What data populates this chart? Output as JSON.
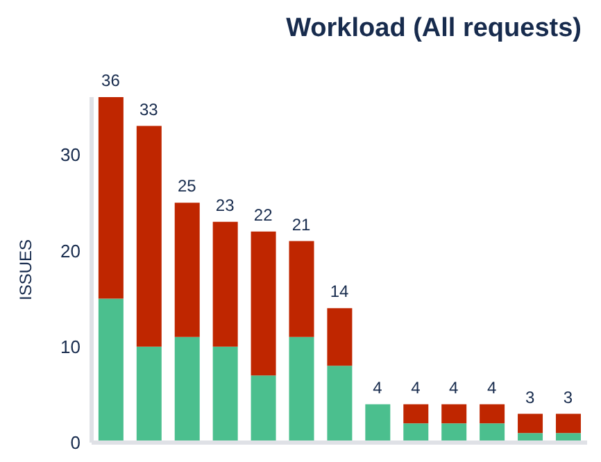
{
  "chart_data": {
    "type": "bar",
    "title": "Workload (All requests)",
    "ylabel": "ISSUES",
    "categories": [
      null,
      null,
      null,
      null,
      null,
      null,
      null,
      null,
      null,
      null,
      null,
      null,
      null
    ],
    "stacked": true,
    "series": [
      {
        "color": "#4bbf8e",
        "values": [
          15,
          10,
          11,
          10,
          7,
          11,
          8,
          4,
          2,
          2,
          2,
          1,
          1
        ]
      },
      {
        "color": "#bf2600",
        "values": [
          21,
          23,
          14,
          13,
          15,
          10,
          6,
          0,
          2,
          2,
          2,
          2,
          2
        ]
      }
    ],
    "totals": [
      "36",
      "33",
      "25",
      "23",
      "22",
      "21",
      "14",
      "4",
      "4",
      "4",
      "4",
      "3",
      "3"
    ],
    "ylim": [
      0,
      36
    ],
    "yticks": [
      0,
      10,
      20,
      30
    ],
    "tick_labels": "y",
    "grid": false,
    "legend": false
  }
}
